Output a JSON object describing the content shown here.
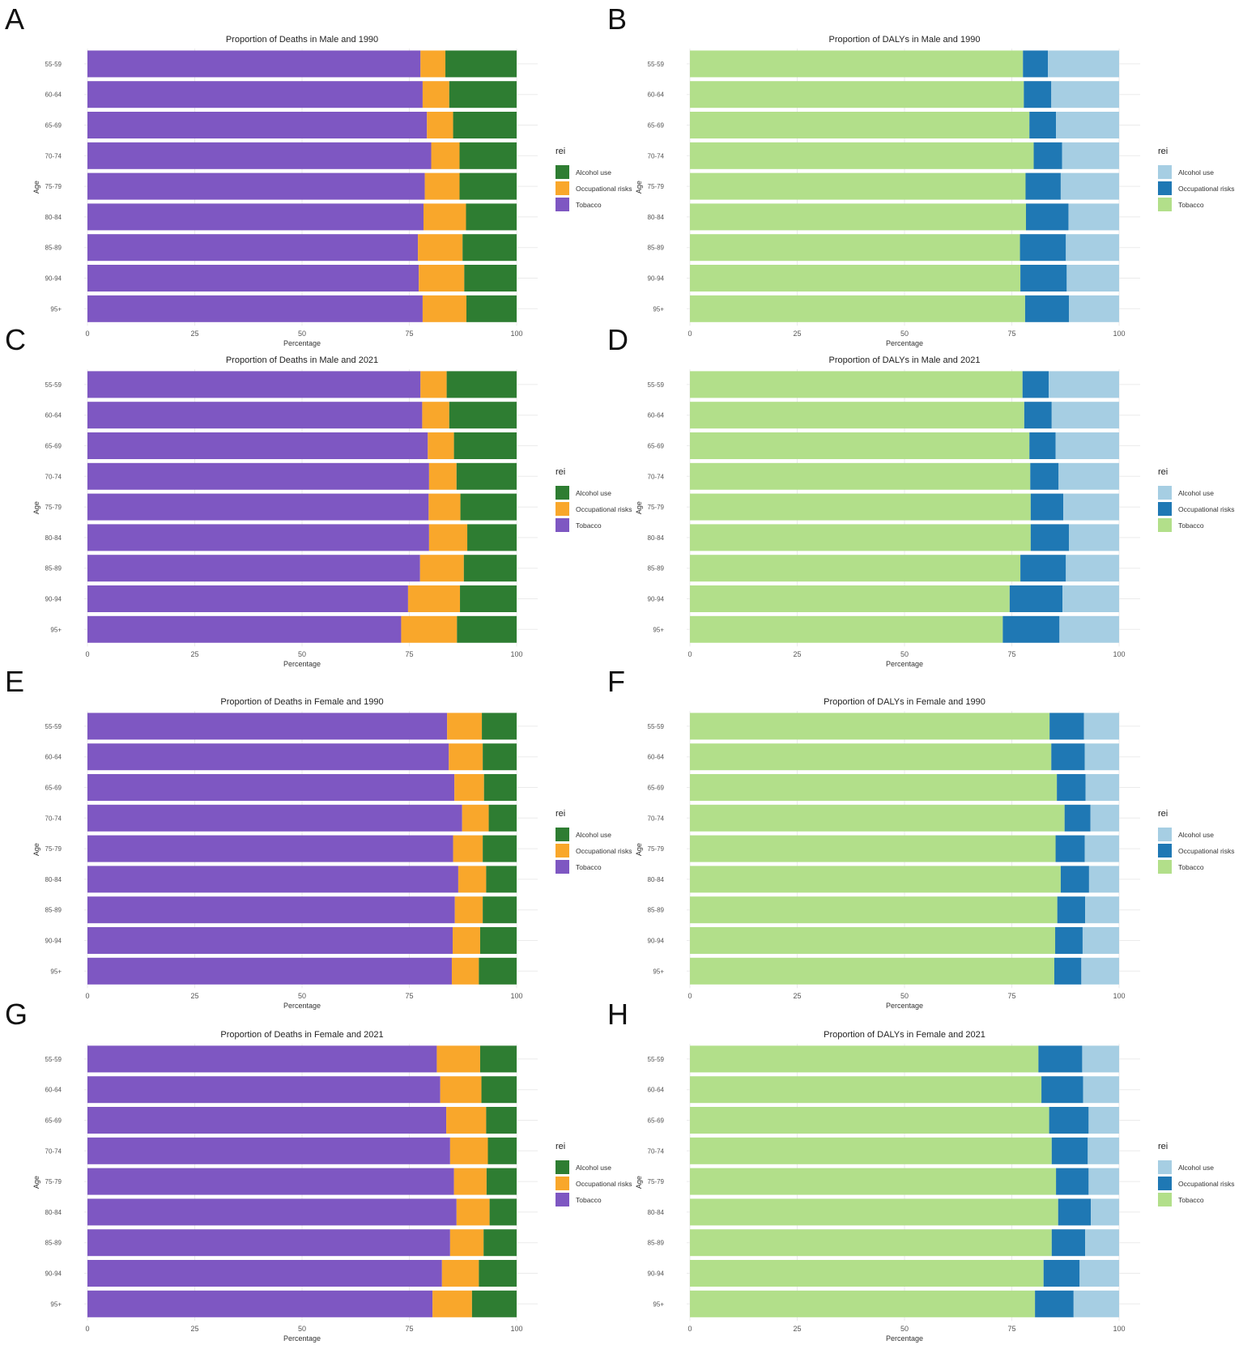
{
  "figure": {
    "age_label": "Age",
    "x_label": "Percentage",
    "legend_title": "rei",
    "series_names": [
      "Alcohol use",
      "Occupational risks",
      "Tobacco"
    ],
    "palettes": {
      "deaths": {
        "Alcohol use": "#2e7d32",
        "Occupational risks": "#f9a72b",
        "Tobacco": "#7e57c2"
      },
      "dalys": {
        "Alcohol use": "#a6cee3",
        "Occupational risks": "#1f78b4",
        "Tobacco": "#b2df8a"
      }
    },
    "ticks": [
      "0",
      "25",
      "50",
      "75",
      "100"
    ]
  },
  "chart_data": [
    {
      "panel": "A",
      "type": "bar",
      "orientation": "horizontal",
      "stacked": true,
      "title": "Proportion of Deaths in Male and 1990",
      "palette": "deaths",
      "xlabel": "Percentage",
      "ylabel": "Age",
      "xlim": [
        0,
        100
      ],
      "categories": [
        "55-59",
        "60-64",
        "65-69",
        "70-74",
        "75-79",
        "80-84",
        "85-89",
        "90-94",
        "95+"
      ],
      "series": [
        {
          "name": "Tobacco",
          "values": [
            77.6,
            78.1,
            79.1,
            80.1,
            78.6,
            78.3,
            77.0,
            77.2,
            78.1
          ]
        },
        {
          "name": "Occupational risks",
          "values": [
            5.8,
            6.2,
            6.1,
            6.6,
            8.1,
            9.9,
            10.4,
            10.6,
            10.2
          ]
        },
        {
          "name": "Alcohol use",
          "values": [
            16.6,
            15.7,
            14.8,
            13.3,
            13.3,
            11.8,
            12.6,
            12.2,
            11.7
          ]
        }
      ]
    },
    {
      "panel": "B",
      "type": "bar",
      "orientation": "horizontal",
      "stacked": true,
      "title": "Proportion of DALYs in Male and 1990",
      "palette": "dalys",
      "xlabel": "Percentage",
      "ylabel": "Age",
      "xlim": [
        0,
        100
      ],
      "categories": [
        "55-59",
        "60-64",
        "65-69",
        "70-74",
        "75-79",
        "80-84",
        "85-89",
        "90-94",
        "95+"
      ],
      "series": [
        {
          "name": "Tobacco",
          "values": [
            77.6,
            77.8,
            79.1,
            80.1,
            78.2,
            78.3,
            76.9,
            77.0,
            78.1
          ]
        },
        {
          "name": "Occupational risks",
          "values": [
            5.8,
            6.4,
            6.2,
            6.6,
            8.2,
            9.9,
            10.7,
            10.8,
            10.2
          ]
        },
        {
          "name": "Alcohol use",
          "values": [
            16.6,
            15.8,
            14.7,
            13.3,
            13.6,
            11.8,
            12.4,
            12.2,
            11.7
          ]
        }
      ]
    },
    {
      "panel": "C",
      "type": "bar",
      "orientation": "horizontal",
      "stacked": true,
      "title": "Proportion of Deaths in Male and 2021",
      "palette": "deaths",
      "xlabel": "Percentage",
      "ylabel": "Age",
      "xlim": [
        0,
        100
      ],
      "categories": [
        "55-59",
        "60-64",
        "65-69",
        "70-74",
        "75-79",
        "80-84",
        "85-89",
        "90-94",
        "95+"
      ],
      "series": [
        {
          "name": "Tobacco",
          "values": [
            77.6,
            78.0,
            79.3,
            79.6,
            79.5,
            79.6,
            77.5,
            74.7,
            73.1
          ]
        },
        {
          "name": "Occupational risks",
          "values": [
            6.1,
            6.3,
            6.1,
            6.4,
            7.4,
            8.9,
            10.2,
            12.1,
            13.0
          ]
        },
        {
          "name": "Alcohol use",
          "values": [
            16.3,
            15.7,
            14.6,
            14.0,
            13.1,
            11.5,
            12.3,
            13.2,
            13.9
          ]
        }
      ]
    },
    {
      "panel": "D",
      "type": "bar",
      "orientation": "horizontal",
      "stacked": true,
      "title": "Proportion of DALYs in Male and 2021",
      "palette": "dalys",
      "xlabel": "Percentage",
      "ylabel": "Age",
      "xlim": [
        0,
        100
      ],
      "categories": [
        "55-59",
        "60-64",
        "65-69",
        "70-74",
        "75-79",
        "80-84",
        "85-89",
        "90-94",
        "95+"
      ],
      "series": [
        {
          "name": "Tobacco",
          "values": [
            77.5,
            77.9,
            79.1,
            79.3,
            79.4,
            79.4,
            77.0,
            74.5,
            72.9
          ]
        },
        {
          "name": "Occupational risks",
          "values": [
            6.1,
            6.4,
            6.1,
            6.6,
            7.6,
            8.9,
            10.6,
            12.3,
            13.2
          ]
        },
        {
          "name": "Alcohol use",
          "values": [
            16.4,
            15.7,
            14.8,
            14.1,
            13.0,
            11.7,
            12.4,
            13.2,
            13.9
          ]
        }
      ]
    },
    {
      "panel": "E",
      "type": "bar",
      "orientation": "horizontal",
      "stacked": true,
      "title": "Proportion of Deaths in Female and 1990",
      "palette": "deaths",
      "xlabel": "Percentage",
      "ylabel": "Age",
      "xlim": [
        0,
        100
      ],
      "categories": [
        "55-59",
        "60-64",
        "65-69",
        "70-74",
        "75-79",
        "80-84",
        "85-89",
        "90-94",
        "95+"
      ],
      "series": [
        {
          "name": "Tobacco",
          "values": [
            83.8,
            84.2,
            85.5,
            87.3,
            85.2,
            86.4,
            85.6,
            85.1,
            84.9
          ]
        },
        {
          "name": "Occupational risks",
          "values": [
            8.1,
            7.9,
            6.9,
            6.2,
            6.9,
            6.5,
            6.5,
            6.4,
            6.3
          ]
        },
        {
          "name": "Alcohol use",
          "values": [
            8.1,
            7.9,
            7.6,
            6.5,
            7.9,
            7.1,
            7.9,
            8.5,
            8.8
          ]
        }
      ]
    },
    {
      "panel": "F",
      "type": "bar",
      "orientation": "horizontal",
      "stacked": true,
      "title": "Proportion of DALYs in Female and 1990",
      "palette": "dalys",
      "xlabel": "Percentage",
      "ylabel": "Age",
      "xlim": [
        0,
        100
      ],
      "categories": [
        "55-59",
        "60-64",
        "65-69",
        "70-74",
        "75-79",
        "80-84",
        "85-89",
        "90-94",
        "95+"
      ],
      "series": [
        {
          "name": "Tobacco",
          "values": [
            83.8,
            84.2,
            85.5,
            87.3,
            85.2,
            86.4,
            85.6,
            85.1,
            84.9
          ]
        },
        {
          "name": "Occupational risks",
          "values": [
            8.0,
            7.8,
            6.7,
            6.0,
            6.8,
            6.6,
            6.5,
            6.4,
            6.3
          ]
        },
        {
          "name": "Alcohol use",
          "values": [
            8.2,
            8.0,
            7.8,
            6.7,
            8.0,
            7.0,
            7.9,
            8.5,
            8.8
          ]
        }
      ]
    },
    {
      "panel": "G",
      "type": "bar",
      "orientation": "horizontal",
      "stacked": true,
      "title": "Proportion of Deaths in Female and 2021",
      "palette": "deaths",
      "xlabel": "Percentage",
      "ylabel": "Age",
      "xlim": [
        0,
        100
      ],
      "categories": [
        "55-59",
        "60-64",
        "65-69",
        "70-74",
        "75-79",
        "80-84",
        "85-89",
        "90-94",
        "95+"
      ],
      "series": [
        {
          "name": "Tobacco",
          "values": [
            81.4,
            82.2,
            83.6,
            84.5,
            85.4,
            86.0,
            84.5,
            82.6,
            80.4
          ]
        },
        {
          "name": "Occupational risks",
          "values": [
            10.1,
            9.6,
            9.3,
            8.8,
            7.6,
            7.7,
            7.8,
            8.6,
            9.2
          ]
        },
        {
          "name": "Alcohol use",
          "values": [
            8.5,
            8.2,
            7.1,
            6.7,
            7.0,
            6.3,
            7.7,
            8.8,
            10.4
          ]
        }
      ]
    },
    {
      "panel": "H",
      "type": "bar",
      "orientation": "horizontal",
      "stacked": true,
      "title": "Proportion of DALYs in Female and 2021",
      "palette": "dalys",
      "xlabel": "Percentage",
      "ylabel": "Age",
      "xlim": [
        0,
        100
      ],
      "categories": [
        "55-59",
        "60-64",
        "65-69",
        "70-74",
        "75-79",
        "80-84",
        "85-89",
        "90-94",
        "95+"
      ],
      "series": [
        {
          "name": "Tobacco",
          "values": [
            81.2,
            81.9,
            83.7,
            84.3,
            85.3,
            85.8,
            84.3,
            82.4,
            80.4
          ]
        },
        {
          "name": "Occupational risks",
          "values": [
            10.2,
            9.7,
            9.2,
            8.4,
            7.6,
            7.6,
            7.8,
            8.4,
            9.0
          ]
        },
        {
          "name": "Alcohol use",
          "values": [
            8.6,
            8.4,
            7.1,
            7.3,
            7.1,
            6.6,
            7.9,
            9.2,
            10.6
          ]
        }
      ]
    }
  ]
}
